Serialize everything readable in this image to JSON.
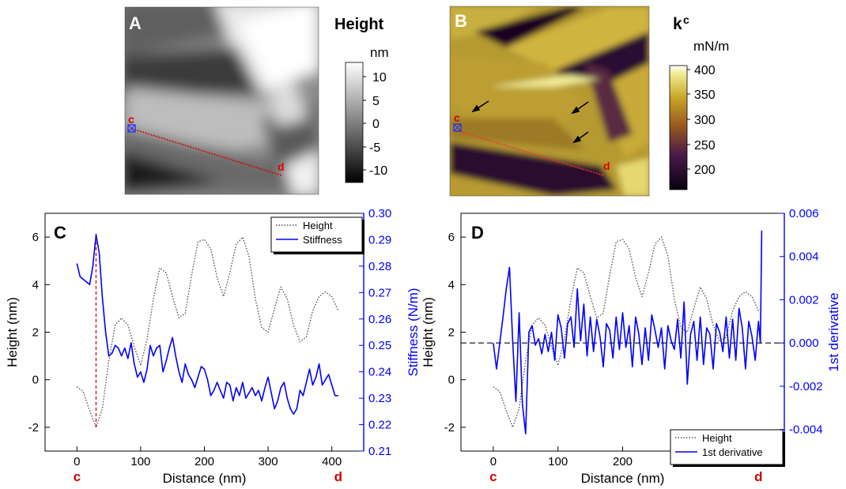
{
  "panels": {
    "A": {
      "label": "A",
      "colorbar_title": "Height",
      "colorbar_unit": "nm",
      "colorbar_ticks": [
        "10",
        "5",
        "0",
        "-5",
        "-10"
      ],
      "marker_c": "c",
      "marker_d": "d"
    },
    "B": {
      "label": "B",
      "colorbar_title_main": "k",
      "colorbar_title_sup": "c",
      "colorbar_unit": "mN/m",
      "colorbar_ticks": [
        "400",
        "350",
        "300",
        "250",
        "200"
      ],
      "marker_c": "c",
      "marker_d": "d"
    }
  },
  "chart_data": [
    {
      "panel": "C",
      "type": "line",
      "xlabel": "Distance (nm)",
      "ylabel": "Height (nm)",
      "ylabel_right": "Stiffness (N/m)",
      "xlim": [
        -50,
        450
      ],
      "ylim": [
        -3,
        7
      ],
      "ylim_right": [
        0.21,
        0.3
      ],
      "x_ticks": [
        "0",
        "100",
        "200",
        "300",
        "400"
      ],
      "y_ticks": [
        "-2",
        "0",
        "2",
        "4",
        "6"
      ],
      "y_right_ticks": [
        "0.21",
        "0.22",
        "0.23",
        "0.24",
        "0.25",
        "0.26",
        "0.27",
        "0.28",
        "0.29",
        "0.30"
      ],
      "x_end_labels": [
        "c",
        "d"
      ],
      "legend": {
        "position": "top-right",
        "entries": [
          "Height",
          "Stiffness"
        ]
      },
      "series": [
        {
          "name": "Height",
          "axis": "left",
          "style": "dotted",
          "color": "#555555",
          "x": [
            0,
            10,
            20,
            30,
            40,
            50,
            60,
            70,
            80,
            90,
            100,
            110,
            120,
            130,
            140,
            150,
            160,
            170,
            180,
            190,
            200,
            210,
            220,
            230,
            240,
            250,
            260,
            270,
            280,
            290,
            300,
            310,
            320,
            330,
            340,
            350,
            360,
            370,
            380,
            390,
            400,
            410
          ],
          "values": [
            -0.3,
            -0.5,
            -1.3,
            -2.0,
            -1.2,
            0.8,
            2.3,
            2.6,
            2.3,
            1.4,
            0.6,
            1.7,
            3.4,
            4.7,
            4.5,
            3.5,
            2.6,
            2.8,
            4.4,
            5.8,
            5.9,
            5.5,
            4.3,
            3.5,
            4.5,
            5.7,
            6.0,
            5.2,
            3.4,
            2.2,
            2.0,
            3.0,
            3.9,
            3.4,
            2.3,
            1.6,
            1.8,
            2.9,
            3.5,
            3.7,
            3.5,
            2.9
          ]
        },
        {
          "name": "Stiffness",
          "axis": "right",
          "style": "solid",
          "color": "#0000ff",
          "x": [
            0,
            5,
            10,
            15,
            20,
            25,
            30,
            35,
            40,
            45,
            50,
            55,
            60,
            65,
            70,
            75,
            80,
            85,
            90,
            95,
            100,
            105,
            110,
            115,
            120,
            125,
            130,
            135,
            140,
            145,
            150,
            155,
            160,
            165,
            170,
            175,
            180,
            185,
            190,
            195,
            200,
            205,
            210,
            215,
            220,
            225,
            230,
            235,
            240,
            245,
            250,
            255,
            260,
            265,
            270,
            275,
            280,
            285,
            290,
            295,
            300,
            305,
            310,
            315,
            320,
            325,
            330,
            335,
            340,
            345,
            350,
            355,
            360,
            365,
            370,
            375,
            380,
            385,
            390,
            395,
            400,
            405,
            410
          ],
          "values": [
            0.281,
            0.276,
            0.275,
            0.274,
            0.273,
            0.28,
            0.292,
            0.285,
            0.268,
            0.255,
            0.246,
            0.247,
            0.25,
            0.249,
            0.246,
            0.249,
            0.245,
            0.251,
            0.243,
            0.238,
            0.24,
            0.236,
            0.241,
            0.25,
            0.246,
            0.249,
            0.25,
            0.24,
            0.244,
            0.249,
            0.253,
            0.246,
            0.24,
            0.236,
            0.243,
            0.239,
            0.237,
            0.234,
            0.238,
            0.242,
            0.241,
            0.237,
            0.231,
            0.233,
            0.236,
            0.233,
            0.23,
            0.236,
            0.235,
            0.229,
            0.234,
            0.231,
            0.236,
            0.23,
            0.232,
            0.234,
            0.231,
            0.233,
            0.229,
            0.234,
            0.238,
            0.232,
            0.226,
            0.229,
            0.234,
            0.236,
            0.23,
            0.226,
            0.224,
            0.226,
            0.233,
            0.231,
            0.236,
            0.241,
            0.235,
            0.238,
            0.243,
            0.235,
            0.237,
            0.239,
            0.235,
            0.231,
            0.231
          ]
        }
      ],
      "annotation": {
        "type": "vertical-dashed-line",
        "color": "#cc0000",
        "x": 30,
        "y_from": -2.0,
        "y_to": 6.0
      }
    },
    {
      "panel": "D",
      "type": "line",
      "xlabel": "Distance (nm)",
      "ylabel": "Height (nm)",
      "ylabel_right": "1st derivative",
      "xlim": [
        -50,
        450
      ],
      "ylim": [
        -3,
        7
      ],
      "ylim_right": [
        -0.005,
        0.006
      ],
      "x_ticks": [
        "0",
        "100",
        "200",
        "300",
        "400"
      ],
      "y_ticks": [
        "-2",
        "0",
        "2",
        "4",
        "6"
      ],
      "y_right_ticks": [
        "-0.004",
        "-0.002",
        "0.000",
        "0.002",
        "0.004",
        "0.006"
      ],
      "x_end_labels": [
        "c",
        "d"
      ],
      "legend": {
        "position": "bottom-right",
        "entries": [
          "Height",
          "1st derivative"
        ]
      },
      "reference_line": {
        "axis": "right",
        "value": 0.0,
        "style": "dashed"
      },
      "series": [
        {
          "name": "Height",
          "axis": "left",
          "style": "dotted",
          "color": "#555555",
          "x": [
            0,
            10,
            20,
            30,
            40,
            50,
            60,
            70,
            80,
            90,
            100,
            110,
            120,
            130,
            140,
            150,
            160,
            170,
            180,
            190,
            200,
            210,
            220,
            230,
            240,
            250,
            260,
            270,
            280,
            290,
            300,
            310,
            320,
            330,
            340,
            350,
            360,
            370,
            380,
            390,
            400,
            410
          ],
          "values": [
            -0.3,
            -0.5,
            -1.3,
            -2.0,
            -1.2,
            0.8,
            2.3,
            2.6,
            2.3,
            1.4,
            0.6,
            1.7,
            3.4,
            4.7,
            4.5,
            3.5,
            2.6,
            2.8,
            4.4,
            5.8,
            5.9,
            5.5,
            4.3,
            3.5,
            4.5,
            5.7,
            6.0,
            5.2,
            3.4,
            2.2,
            2.0,
            3.0,
            3.9,
            3.4,
            2.3,
            1.6,
            1.8,
            2.9,
            3.5,
            3.7,
            3.5,
            2.9
          ]
        },
        {
          "name": "1st derivative",
          "axis": "right",
          "style": "solid",
          "color": "#0000ff",
          "x": [
            0,
            5,
            10,
            15,
            20,
            25,
            30,
            35,
            40,
            45,
            50,
            55,
            60,
            65,
            70,
            75,
            80,
            85,
            90,
            95,
            100,
            105,
            110,
            115,
            120,
            125,
            130,
            135,
            140,
            145,
            150,
            155,
            160,
            165,
            170,
            175,
            180,
            185,
            190,
            195,
            200,
            205,
            210,
            215,
            220,
            225,
            230,
            235,
            240,
            245,
            250,
            255,
            260,
            265,
            270,
            275,
            280,
            285,
            290,
            295,
            300,
            305,
            310,
            315,
            320,
            325,
            330,
            335,
            340,
            345,
            350,
            355,
            360,
            365,
            370,
            375,
            380,
            385,
            390,
            395,
            400,
            405,
            410,
            413,
            415
          ],
          "values": [
            0.0,
            -0.0012,
            0.0,
            0.0012,
            0.0025,
            0.0035,
            0.0001,
            -0.0027,
            0.0014,
            -0.0028,
            -0.0042,
            0.0005,
            0.0008,
            -0.0001,
            0.0002,
            -0.0005,
            0.0004,
            -0.0004,
            0.0005,
            -0.0008,
            0.0013,
            0.0007,
            -0.0007,
            0.0009,
            0.0012,
            -0.0002,
            0.0025,
            0.0001,
            0.0018,
            -0.0006,
            0.0012,
            -0.0004,
            0.0011,
            0.0003,
            -0.0011,
            0.0009,
            0.0006,
            -0.0007,
            0.0012,
            -0.0003,
            0.0014,
            -0.0002,
            0.0008,
            -0.0011,
            0.0012,
            0.0004,
            -0.001,
            0.0007,
            -0.0008,
            0.0013,
            0.0006,
            -0.0002,
            0.0007,
            -0.0012,
            0.0008,
            0.0001,
            -0.0003,
            0.0011,
            -0.0007,
            0.0019,
            -0.0019,
            0.0004,
            0.001,
            -0.0008,
            0.0012,
            -0.001,
            0.0007,
            0.0004,
            -0.0012,
            0.0009,
            0.0005,
            -0.0004,
            0.0012,
            -0.0007,
            0.0011,
            -0.0008,
            0.0016,
            0.0007,
            -0.0012,
            0.001,
            0.0003,
            -0.0008,
            0.001,
            0.0,
            0.0052
          ]
        }
      ]
    }
  ]
}
